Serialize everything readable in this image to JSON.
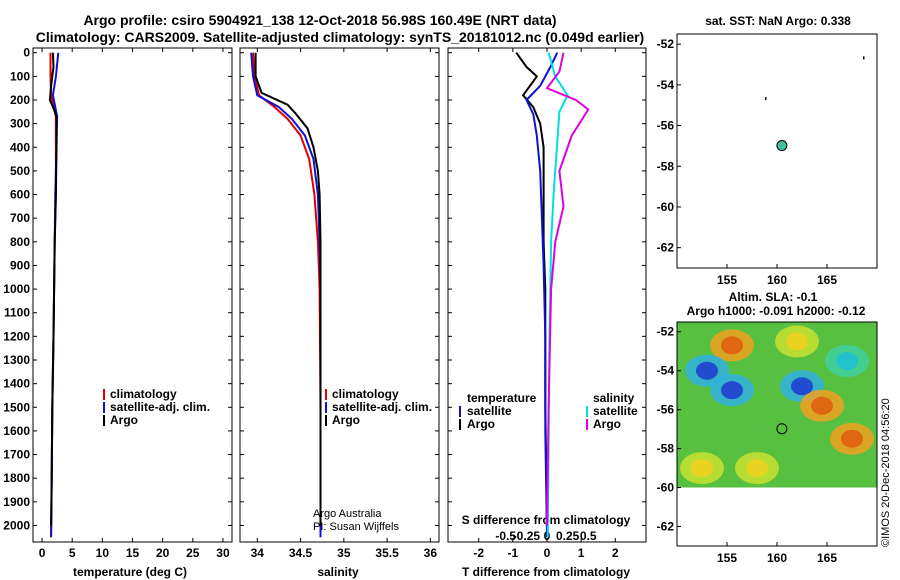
{
  "header": {
    "line1": "Argo profile: csiro 5904921_138 12-Oct-2018 56.98S 160.49E (NRT data)",
    "line2": "Climatology: CARS2009. Satellite-adjusted climatology: synTS_20181012.nc (0.049d earlier)"
  },
  "credit": {
    "text1": "Argo Australia",
    "text2": "PI: Susan Wijffels",
    "watermark": "©IMOS 20-Dec-2018 04:56:20"
  },
  "colors": {
    "climatology": "#e00000",
    "satellite": "#1010d0",
    "argo": "#000000",
    "sat_salinity": "#00e0e0",
    "argo_salinity": "#e000e0"
  },
  "chart_data": [
    {
      "type": "line",
      "id": "temperature",
      "xlabel": "temperature (deg C)",
      "ylabel": "",
      "xlim": [
        -1.5,
        31.5
      ],
      "ylim": [
        2070,
        -20
      ],
      "xticks": [
        0,
        5,
        10,
        15,
        20,
        25,
        30
      ],
      "xtick_labels": [
        "0",
        "5",
        "10",
        "15",
        "20",
        "25",
        "30"
      ],
      "yticks": [
        0,
        100,
        200,
        300,
        400,
        500,
        600,
        700,
        800,
        900,
        1000,
        1100,
        1200,
        1300,
        1400,
        1500,
        1600,
        1700,
        1800,
        1900,
        2000
      ],
      "ytick_labels": [
        "0",
        "100",
        "200",
        "300",
        "400",
        "500",
        "600",
        "700",
        "800",
        "900",
        "1000",
        "1100",
        "1200",
        "1300",
        "1400",
        "1500",
        "1600",
        "1700",
        "1800",
        "1900",
        "2000"
      ],
      "legend": [
        "climatology",
        "satellite-adj. clim.",
        "Argo"
      ],
      "legend_position": "lower-right",
      "series": [
        {
          "name": "climatology",
          "color": "#e00000",
          "points": [
            [
              1.4,
              0
            ],
            [
              1.4,
              100
            ],
            [
              1.5,
              180
            ],
            [
              1.9,
              230
            ],
            [
              2.3,
              270
            ],
            [
              2.3,
              400
            ],
            [
              2.3,
              600
            ],
            [
              2.1,
              800
            ],
            [
              2.0,
              1000
            ],
            [
              1.9,
              1200
            ],
            [
              1.7,
              1500
            ],
            [
              1.6,
              1800
            ],
            [
              1.5,
              2050
            ]
          ]
        },
        {
          "name": "satellite-adj. clim.",
          "color": "#1010d0",
          "points": [
            [
              2.7,
              0
            ],
            [
              2.3,
              100
            ],
            [
              1.8,
              180
            ],
            [
              2.2,
              230
            ],
            [
              2.5,
              270
            ],
            [
              2.4,
              400
            ],
            [
              2.2,
              600
            ],
            [
              2.1,
              800
            ],
            [
              2.0,
              1000
            ],
            [
              1.9,
              1200
            ],
            [
              1.7,
              1500
            ],
            [
              1.6,
              1800
            ],
            [
              1.5,
              2050
            ]
          ]
        },
        {
          "name": "Argo",
          "color": "#000000",
          "points": [
            [
              1.8,
              0
            ],
            [
              1.9,
              60
            ],
            [
              1.5,
              140
            ],
            [
              1.3,
              200
            ],
            [
              2.0,
              240
            ],
            [
              2.4,
              270
            ],
            [
              2.4,
              400
            ],
            [
              2.3,
              600
            ],
            [
              2.1,
              800
            ],
            [
              2.0,
              1000
            ],
            [
              1.9,
              1200
            ],
            [
              1.7,
              1500
            ],
            [
              1.6,
              1800
            ],
            [
              1.5,
              2000
            ]
          ]
        }
      ]
    },
    {
      "type": "line",
      "id": "salinity",
      "xlabel": "salinity",
      "ylabel": "",
      "xlim": [
        33.8,
        36.1
      ],
      "ylim": [
        2070,
        -20
      ],
      "xticks": [
        34,
        34.5,
        35,
        35.5,
        36
      ],
      "xtick_labels": [
        "34",
        "34.5",
        "35",
        "35.5",
        "36"
      ],
      "yticks": [],
      "ytick_labels": [],
      "legend": [
        "climatology",
        "satellite-adj. clim.",
        "Argo"
      ],
      "legend_position": "lower-right",
      "series": [
        {
          "name": "climatology",
          "color": "#e00000",
          "points": [
            [
              33.95,
              0
            ],
            [
              33.97,
              100
            ],
            [
              34.02,
              180
            ],
            [
              34.2,
              230
            ],
            [
              34.35,
              280
            ],
            [
              34.5,
              350
            ],
            [
              34.6,
              450
            ],
            [
              34.66,
              600
            ],
            [
              34.7,
              800
            ],
            [
              34.72,
              1000
            ],
            [
              34.73,
              1500
            ],
            [
              34.73,
              2050
            ]
          ]
        },
        {
          "name": "satellite-adj. clim.",
          "color": "#1010d0",
          "points": [
            [
              33.93,
              0
            ],
            [
              33.95,
              100
            ],
            [
              34.0,
              180
            ],
            [
              34.25,
              230
            ],
            [
              34.4,
              280
            ],
            [
              34.55,
              350
            ],
            [
              34.65,
              450
            ],
            [
              34.7,
              600
            ],
            [
              34.72,
              800
            ],
            [
              34.73,
              1000
            ],
            [
              34.73,
              1500
            ],
            [
              34.73,
              2050
            ]
          ]
        },
        {
          "name": "Argo",
          "color": "#000000",
          "points": [
            [
              33.98,
              0
            ],
            [
              33.98,
              100
            ],
            [
              34.05,
              170
            ],
            [
              34.35,
              220
            ],
            [
              34.45,
              260
            ],
            [
              34.58,
              320
            ],
            [
              34.65,
              400
            ],
            [
              34.7,
              500
            ],
            [
              34.72,
              600
            ],
            [
              34.73,
              800
            ],
            [
              34.73,
              1000
            ],
            [
              34.73,
              1500
            ],
            [
              34.73,
              2000
            ]
          ]
        }
      ]
    },
    {
      "type": "line",
      "id": "difference",
      "xlabel": "T difference from climatology",
      "x2label": "S difference from climatology",
      "xlim": [
        -2.9,
        2.9
      ],
      "ylim": [
        2070,
        -20
      ],
      "xticks": [
        -2,
        -1,
        0,
        1,
        2
      ],
      "xtick_labels": [
        "-2",
        "-1",
        "0",
        "1",
        "2"
      ],
      "x2ticks": [
        -0.5,
        -0.25,
        0,
        0.25,
        0.5
      ],
      "x2tick_labels": [
        "-0.5",
        "-0.25",
        "0",
        "0.25",
        "0.5"
      ],
      "x2lim": [
        -1.2,
        1.2
      ],
      "legend_left_title": "temperature",
      "legend_right_title": "salinity",
      "legend_left": [
        "satellite",
        "Argo"
      ],
      "legend_right": [
        "satellite",
        "Argo"
      ],
      "series": [
        {
          "name": "T Argo-clim",
          "axis": "T",
          "color": "#000000",
          "points": [
            [
              -0.9,
              0
            ],
            [
              -0.6,
              60
            ],
            [
              -0.3,
              100
            ],
            [
              -0.7,
              180
            ],
            [
              -0.4,
              230
            ],
            [
              -0.2,
              300
            ],
            [
              -0.1,
              400
            ],
            [
              -0.1,
              600
            ],
            [
              -0.1,
              800
            ],
            [
              -0.05,
              1000
            ],
            [
              -0.05,
              1500
            ],
            [
              0.0,
              2000
            ]
          ]
        },
        {
          "name": "T satellite-clim",
          "axis": "T",
          "color": "#1010d0",
          "points": [
            [
              0.3,
              0
            ],
            [
              0.1,
              60
            ],
            [
              -0.2,
              140
            ],
            [
              -0.6,
              200
            ],
            [
              -0.4,
              260
            ],
            [
              -0.3,
              350
            ],
            [
              -0.2,
              500
            ],
            [
              -0.15,
              700
            ],
            [
              -0.1,
              900
            ],
            [
              -0.05,
              1200
            ],
            [
              -0.05,
              1600
            ],
            [
              0.0,
              2050
            ]
          ]
        },
        {
          "name": "S satellite-clim",
          "axis": "S",
          "color": "#00e0e0",
          "points": [
            [
              0.02,
              0
            ],
            [
              0.1,
              100
            ],
            [
              0.25,
              180
            ],
            [
              0.15,
              250
            ],
            [
              0.12,
              400
            ],
            [
              0.08,
              600
            ],
            [
              0.05,
              800
            ],
            [
              0.03,
              1200
            ],
            [
              0.01,
              2050
            ]
          ]
        },
        {
          "name": "S Argo-clim",
          "axis": "S",
          "color": "#e000e0",
          "points": [
            [
              0.2,
              0
            ],
            [
              0.15,
              80
            ],
            [
              0.0,
              150
            ],
            [
              0.35,
              200
            ],
            [
              0.5,
              240
            ],
            [
              0.3,
              350
            ],
            [
              0.15,
              500
            ],
            [
              0.2,
              650
            ],
            [
              0.1,
              800
            ],
            [
              0.05,
              1000
            ],
            [
              0.02,
              1500
            ],
            [
              0.0,
              2000
            ]
          ]
        }
      ]
    },
    {
      "type": "scatter",
      "id": "sst-map",
      "title": "sat. SST: NaN Argo: 0.338",
      "xlim": [
        150,
        170
      ],
      "ylim": [
        -63,
        -51.5
      ],
      "xticks": [
        155,
        160,
        165
      ],
      "xtick_labels": [
        "155",
        "160",
        "165"
      ],
      "yticks": [
        -52,
        -54,
        -56,
        -58,
        -60,
        -62
      ],
      "ytick_labels": [
        "-52",
        "-54",
        "-56",
        "-58",
        "-60",
        "-62"
      ],
      "marker": {
        "lon": 160.49,
        "lat": -56.98
      },
      "specks": [
        [
          168.6,
          -52.6
        ],
        [
          158.8,
          -54.6
        ]
      ]
    },
    {
      "type": "heatmap",
      "id": "sla-map",
      "title1": "Altim. SLA: -0.1",
      "title2": "Argo h1000: -0.091 h2000: -0.12",
      "xlim": [
        150,
        170
      ],
      "ylim": [
        -63,
        -51.5
      ],
      "data_lat_range": [
        -60,
        -51.5
      ],
      "xticks": [
        155,
        160,
        165
      ],
      "xtick_labels": [
        "155",
        "160",
        "165"
      ],
      "yticks": [
        -52,
        -54,
        -56,
        -58,
        -60,
        -62
      ],
      "ytick_labels": [
        "-52",
        "-54",
        "-56",
        "-58",
        "-60",
        "-62"
      ],
      "marker": {
        "lon": 160.49,
        "lat": -56.98
      },
      "blobs": [
        {
          "lon": 155.5,
          "lat": -52.7,
          "level": "orange"
        },
        {
          "lon": 153.0,
          "lat": -54.0,
          "level": "blue"
        },
        {
          "lon": 155.5,
          "lat": -55.0,
          "level": "blue"
        },
        {
          "lon": 162.5,
          "lat": -54.8,
          "level": "blue"
        },
        {
          "lon": 164.5,
          "lat": -55.8,
          "level": "orange"
        },
        {
          "lon": 162.0,
          "lat": -52.5,
          "level": "yellow"
        },
        {
          "lon": 167.5,
          "lat": -57.5,
          "level": "orange"
        },
        {
          "lon": 158.0,
          "lat": -59.0,
          "level": "yellow"
        },
        {
          "lon": 152.5,
          "lat": -59.0,
          "level": "yellow"
        },
        {
          "lon": 167.0,
          "lat": -53.5,
          "level": "cyan"
        }
      ]
    }
  ]
}
